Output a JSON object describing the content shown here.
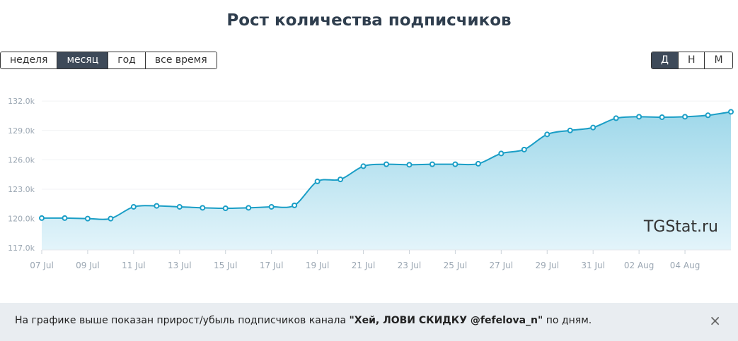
{
  "title": "Рост количества подписчиков",
  "range_buttons": [
    "неделя",
    "месяц",
    "год",
    "все время"
  ],
  "scale_buttons": [
    "Д",
    "Н",
    "М"
  ],
  "watermark": "TGStat.ru",
  "notice": {
    "before": "На графике выше показан прирост/убыль подписчиков канала ",
    "channel": "\"Хей, ЛОВИ СКИДКУ @fefelova_n\"",
    "after": " по дням.",
    "close": "×"
  },
  "chart_data": {
    "type": "area",
    "color": "#1a9ec6",
    "categories": [
      "07 Jul",
      null,
      "09 Jul",
      null,
      "11 Jul",
      null,
      "13 Jul",
      null,
      "15 Jul",
      null,
      "17 Jul",
      null,
      "19 Jul",
      null,
      "21 Jul",
      null,
      "23 Jul",
      null,
      "25 Jul",
      null,
      "27 Jul",
      null,
      "29 Jul",
      null,
      "31 Jul",
      null,
      "02 Aug",
      null,
      "04 Aug",
      null,
      null
    ],
    "values": [
      120050,
      120050,
      120000,
      120000,
      121200,
      121300,
      121200,
      121100,
      121050,
      121100,
      121200,
      121350,
      123800,
      124000,
      125350,
      125550,
      125500,
      125550,
      125550,
      125600,
      126650,
      127050,
      128600,
      129000,
      129300,
      130250,
      130400,
      130350,
      130400,
      130550,
      130900
    ],
    "ylim": [
      116800,
      132300
    ],
    "yticks": [
      {
        "value": 117000,
        "label": "117.0k"
      },
      {
        "value": 120000,
        "label": "120.0k"
      },
      {
        "value": 123000,
        "label": "123.0k"
      },
      {
        "value": 126000,
        "label": "126.0k"
      },
      {
        "value": 129000,
        "label": "129.0k"
      },
      {
        "value": 132000,
        "label": "132.0k"
      }
    ],
    "grid": true
  }
}
